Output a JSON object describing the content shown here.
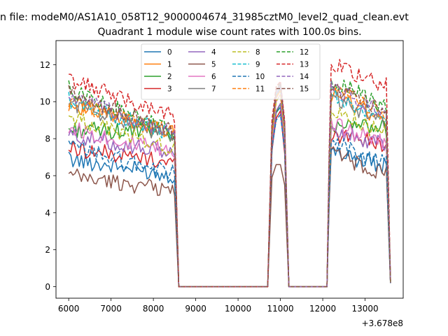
{
  "figure": {
    "suptitle": "n file: modeM0/AS1A10_058T12_9000004674_31985cztM0_level2_quad_clean.evt"
  },
  "chart_data": {
    "type": "line",
    "title": "Quadrant 1 module wise count rates with 100.0s bins.",
    "xlabel": "",
    "ylabel": "",
    "x_offset_label": "+3.678e8",
    "xlim": [
      5700,
      13900
    ],
    "ylim": [
      -0.62,
      13.3
    ],
    "xticks": [
      6000,
      7000,
      8000,
      9000,
      10000,
      11000,
      12000,
      13000
    ],
    "yticks": [
      0,
      2,
      4,
      6,
      8,
      10,
      12
    ],
    "grid": false,
    "legend": {
      "placement": "top-center",
      "columns": 4
    },
    "segments": {
      "seg1": {
        "start": 6000,
        "end": 8500,
        "step": 50
      },
      "gap1": [
        8600,
        10700
      ],
      "peak": {
        "x": [
          10700,
          10800,
          10900,
          11000,
          11100,
          11200
        ]
      },
      "gap2": [
        11300,
        12100
      ],
      "seg3": {
        "start": 12100,
        "end": 13500,
        "step": 50
      },
      "final": 13600
    },
    "series": [
      {
        "name": "0",
        "color": "#1f77b4",
        "dash": "solid",
        "base1": 6.9,
        "trend1": -0.9,
        "peak": [
          0,
          7.3,
          9.4,
          9.7,
          7.4,
          0
        ],
        "base3": 7.3,
        "trend3": -0.8,
        "end": 0.2
      },
      {
        "name": "1",
        "color": "#ff7f0e",
        "dash": "solid",
        "base1": 9.9,
        "trend1": -1.6,
        "peak": [
          0,
          8.2,
          10.2,
          10.6,
          8.6,
          0
        ],
        "base3": 10.5,
        "trend3": -1.5,
        "end": 0.3
      },
      {
        "name": "2",
        "color": "#2ca02c",
        "dash": "solid",
        "base1": 8.5,
        "trend1": -0.2,
        "peak": [
          0,
          7.8,
          9.4,
          9.9,
          7.7,
          0
        ],
        "base3": 8.8,
        "trend3": -0.2,
        "end": 0.2
      },
      {
        "name": "3",
        "color": "#d62728",
        "dash": "solid",
        "base1": 7.5,
        "trend1": -0.8,
        "peak": [
          0,
          7.4,
          9.1,
          9.5,
          7.2,
          0
        ],
        "base3": 8.2,
        "trend3": -0.5,
        "end": 0.2
      },
      {
        "name": "4",
        "color": "#9467bd",
        "dash": "solid",
        "base1": 8.2,
        "trend1": -1.0,
        "peak": [
          0,
          7.6,
          9.5,
          9.9,
          7.6,
          0
        ],
        "base3": 8.5,
        "trend3": -0.9,
        "end": 0.2
      },
      {
        "name": "5",
        "color": "#8c564b",
        "dash": "solid",
        "base1": 6.0,
        "trend1": -0.8,
        "peak": [
          0,
          5.9,
          6.6,
          6.6,
          5.5,
          0
        ],
        "base3": 7.3,
        "trend3": -1.2,
        "end": 0.2
      },
      {
        "name": "6",
        "color": "#e377c2",
        "dash": "solid",
        "base1": 8.6,
        "trend1": -1.4,
        "peak": [
          0,
          8.0,
          10.0,
          10.4,
          8.0,
          0
        ],
        "base3": 8.9,
        "trend3": -1.2,
        "end": 0.3
      },
      {
        "name": "7",
        "color": "#7f7f7f",
        "dash": "solid",
        "base1": 10.0,
        "trend1": -2.0,
        "peak": [
          0,
          8.3,
          10.3,
          10.7,
          8.4,
          0
        ],
        "base3": 10.4,
        "trend3": -1.6,
        "end": 0.3
      },
      {
        "name": "8",
        "color": "#bcbd22",
        "dash": "dashed",
        "base1": 9.2,
        "trend1": -1.8,
        "peak": [
          0,
          8.1,
          10.0,
          10.4,
          8.1,
          0
        ],
        "base3": 9.6,
        "trend3": -1.4,
        "end": 0.3
      },
      {
        "name": "9",
        "color": "#17becf",
        "dash": "dashed",
        "base1": 10.1,
        "trend1": -1.9,
        "peak": [
          0,
          8.4,
          10.4,
          10.8,
          8.5,
          0
        ],
        "base3": 10.6,
        "trend3": -1.6,
        "end": 0.3
      },
      {
        "name": "10",
        "color": "#1f77b4",
        "dash": "dashed",
        "base1": 7.6,
        "trend1": -1.5,
        "peak": [
          0,
          7.5,
          9.0,
          9.3,
          7.4,
          0
        ],
        "base3": 7.9,
        "trend3": -1.3,
        "end": 0.2
      },
      {
        "name": "11",
        "color": "#ff7f0e",
        "dash": "dashed",
        "base1": 10.0,
        "trend1": -1.7,
        "peak": [
          0,
          8.3,
          10.3,
          10.6,
          8.4,
          0
        ],
        "base3": 10.9,
        "trend3": -1.6,
        "end": 0.3
      },
      {
        "name": "12",
        "color": "#2ca02c",
        "dash": "dashed",
        "base1": 10.7,
        "trend1": -2.4,
        "peak": [
          0,
          8.7,
          10.8,
          11.0,
          8.8,
          0
        ],
        "base3": 11.3,
        "trend3": -1.6,
        "end": 0.3
      },
      {
        "name": "13",
        "color": "#d62728",
        "dash": "dashed",
        "base1": 11.2,
        "trend1": -2.0,
        "peak": [
          0,
          9.0,
          10.8,
          11.1,
          9.0,
          0
        ],
        "base3": 12.1,
        "trend3": -1.2,
        "end": 0.3
      },
      {
        "name": "14",
        "color": "#9467bd",
        "dash": "dashed",
        "base1": 10.3,
        "trend1": -2.1,
        "peak": [
          0,
          8.5,
          10.4,
          10.9,
          8.6,
          0
        ],
        "base3": 10.8,
        "trend3": -1.5,
        "end": 0.3
      },
      {
        "name": "15",
        "color": "#8c564b",
        "dash": "dashed",
        "base1": 10.5,
        "trend1": -2.2,
        "peak": [
          0,
          8.6,
          10.6,
          11.0,
          8.7,
          0
        ],
        "base3": 11.0,
        "trend3": -1.6,
        "end": 0.3
      }
    ]
  }
}
